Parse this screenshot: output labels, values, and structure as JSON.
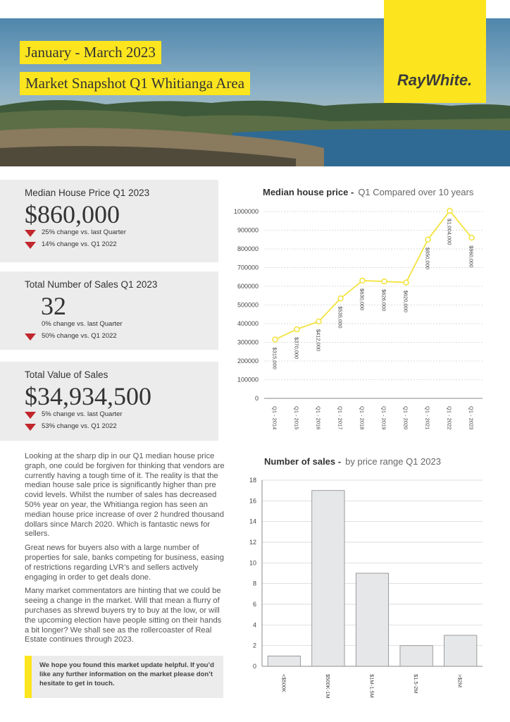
{
  "header": {
    "date_range": "January - March 2023",
    "title": "Market Snapshot Q1 Whitianga Area",
    "logo": "RayWhite."
  },
  "stats": [
    {
      "title": "Median House Price Q1 2023",
      "value": "$860,000",
      "changes": [
        {
          "text": "25% change vs. last Quarter",
          "trend": "down"
        },
        {
          "text": "14% change vs. Q1 2022",
          "trend": "down"
        }
      ]
    },
    {
      "title": "Total Number of Sales Q1 2023",
      "value": "32",
      "changes": [
        {
          "text": "0% change vs. last Quarter",
          "trend": "none"
        },
        {
          "text": "50% change vs. Q1 2022",
          "trend": "down"
        }
      ]
    },
    {
      "title": "Total Value of Sales",
      "value": "$34,934,500",
      "changes": [
        {
          "text": "5% change vs. last Quarter",
          "trend": "down"
        },
        {
          "text": "53% change vs. Q1 2022",
          "trend": "down"
        }
      ]
    }
  ],
  "body": {
    "paragraphs": [
      "Looking at the sharp dip in our Q1 median house price graph, one could be forgiven for thinking that vendors are currently having a tough time of it. The reality is that the median house sale price is significantly higher than pre covid levels. Whilst the number of sales has decreased 50% year on year, the Whitianga region has seen an median house price increase of over 2 hundred thousand dollars since March 2020. Which is fantastic news for sellers.",
      "Great news for buyers also with a large number of properties for sale, banks competing for business, easing of restrictions regarding LVR’s and sellers actively engaging in order to get deals done.",
      "Many market commentators are hinting that we could be seeing a change in the market. Will that mean a flurry of purchases as shrewd buyers try to buy at the low, or will the upcoming election have people sitting on their hands a bit longer? We shall see as the rollercoaster of Real Estate continues through 2023."
    ],
    "callout": "We hope you found this market update helpful. If you’d like any further information on the market please don’t hesitate to get in touch."
  },
  "chart_data": [
    {
      "type": "line",
      "title": "Median house price -",
      "subtitle": "Q1 Compared over 10 years",
      "categories": [
        "Q1 - 2014",
        "Q1 - 2015",
        "Q1 - 2016",
        "Q1 - 2017",
        "Q1 - 2018",
        "Q1 - 2019",
        "Q1 - 2020",
        "Q1 - 2021",
        "Q1 - 2022",
        "Q1 - 2023"
      ],
      "values": [
        315000,
        370000,
        412000,
        535000,
        630000,
        626000,
        620000,
        850000,
        1004000,
        860000
      ],
      "value_labels": [
        "$315,000",
        "$370,000",
        "$412,000",
        "$535,000",
        "$630,000",
        "$626,000",
        "$620,000",
        "$850,000",
        "$1,004,000",
        "$860,000"
      ],
      "color": "#f3e33b",
      "ylim": [
        0,
        1000000
      ],
      "yticks": [
        0,
        100000,
        200000,
        300000,
        400000,
        500000,
        600000,
        700000,
        800000,
        900000,
        1000000
      ],
      "grid": true
    },
    {
      "type": "bar",
      "title": "Number of sales -",
      "subtitle": "by price range Q1 2023",
      "categories": [
        "<$500K",
        "$500K-1M",
        "$1M-1.5M",
        "$1.5-2M",
        ">$2M"
      ],
      "values": [
        1,
        17,
        9,
        2,
        3
      ],
      "color": "#e6e7e9",
      "ylim": [
        0,
        18
      ],
      "yticks": [
        0,
        2,
        4,
        6,
        8,
        10,
        12,
        14,
        16,
        18
      ],
      "grid": true
    }
  ]
}
